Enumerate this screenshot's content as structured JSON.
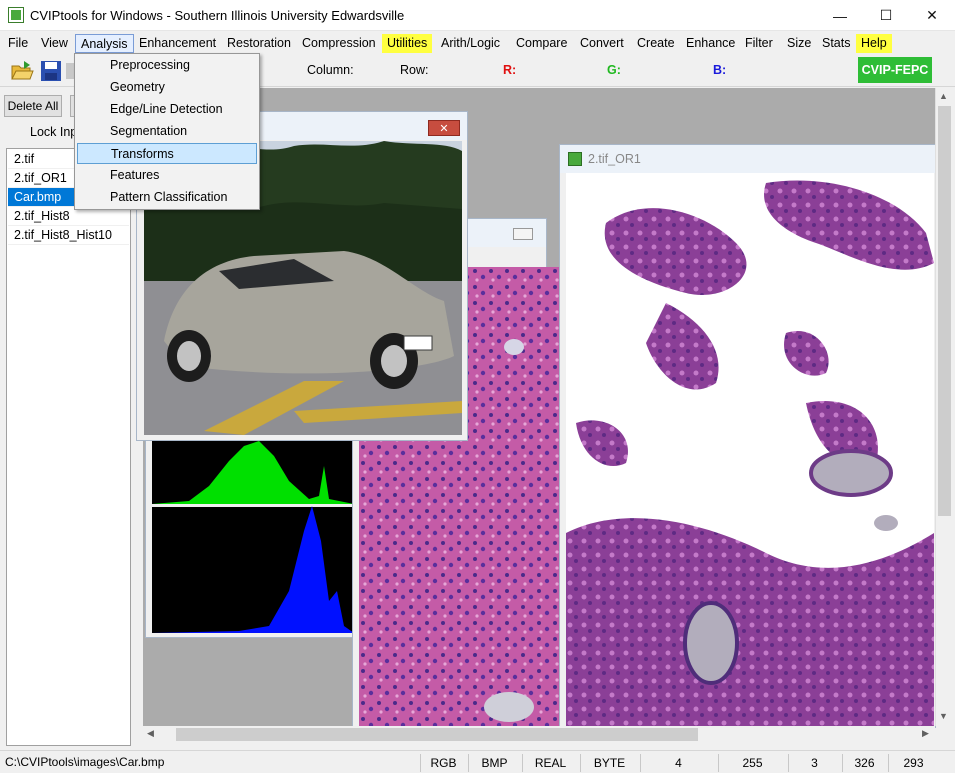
{
  "window": {
    "title": "CVIPtools for Windows - Southern Illinois University Edwardsville",
    "minimize": "—",
    "maximize": "☐",
    "close": "✕"
  },
  "menubar": {
    "items": [
      "File",
      "View",
      "Analysis",
      "Enhancement",
      "Restoration",
      "Compression",
      "Utilities",
      "Arith/Logic",
      "Compare",
      "Convert",
      "Create",
      "Enhance",
      "Filter",
      "Size",
      "Stats",
      "Help"
    ]
  },
  "analysis_menu": {
    "items": [
      "Preprocessing",
      "Geometry",
      "Edge/Line Detection",
      "Segmentation",
      "Transforms",
      "Features",
      "Pattern Classification"
    ],
    "active": "Transforms"
  },
  "toolbar": {
    "column_label": "Column:",
    "row_label": "Row:",
    "r_label": "R:",
    "g_label": "G:",
    "b_label": "B:",
    "fepc_label": "CVIP-FEPC",
    "r_color": "#e01010",
    "g_color": "#1fb81f",
    "b_color": "#1a1adb"
  },
  "left_panel": {
    "delete_all": "Delete All",
    "lock_input": "Lock Inpu",
    "images": [
      "2.tif",
      "2.tif_OR1",
      "Car.bmp",
      "2.tif_Hist8",
      "2.tif_Hist8_Hist10"
    ],
    "selected": "Car.bmp"
  },
  "windows": {
    "car_title": "",
    "or1_title": "2.tif_OR1"
  },
  "statusbar": {
    "path": "C:\\CVIPtools\\images\\Car.bmp",
    "color_space": "RGB",
    "format": "BMP",
    "data_type": "REAL",
    "data_format": "BYTE",
    "v1": "4",
    "v2": "255",
    "v3": "3",
    "v4": "326",
    "v5": "293"
  },
  "colors": {
    "accent": "#0078d7",
    "fepc": "#2ebd36",
    "help_highlight": "#ffff40"
  }
}
